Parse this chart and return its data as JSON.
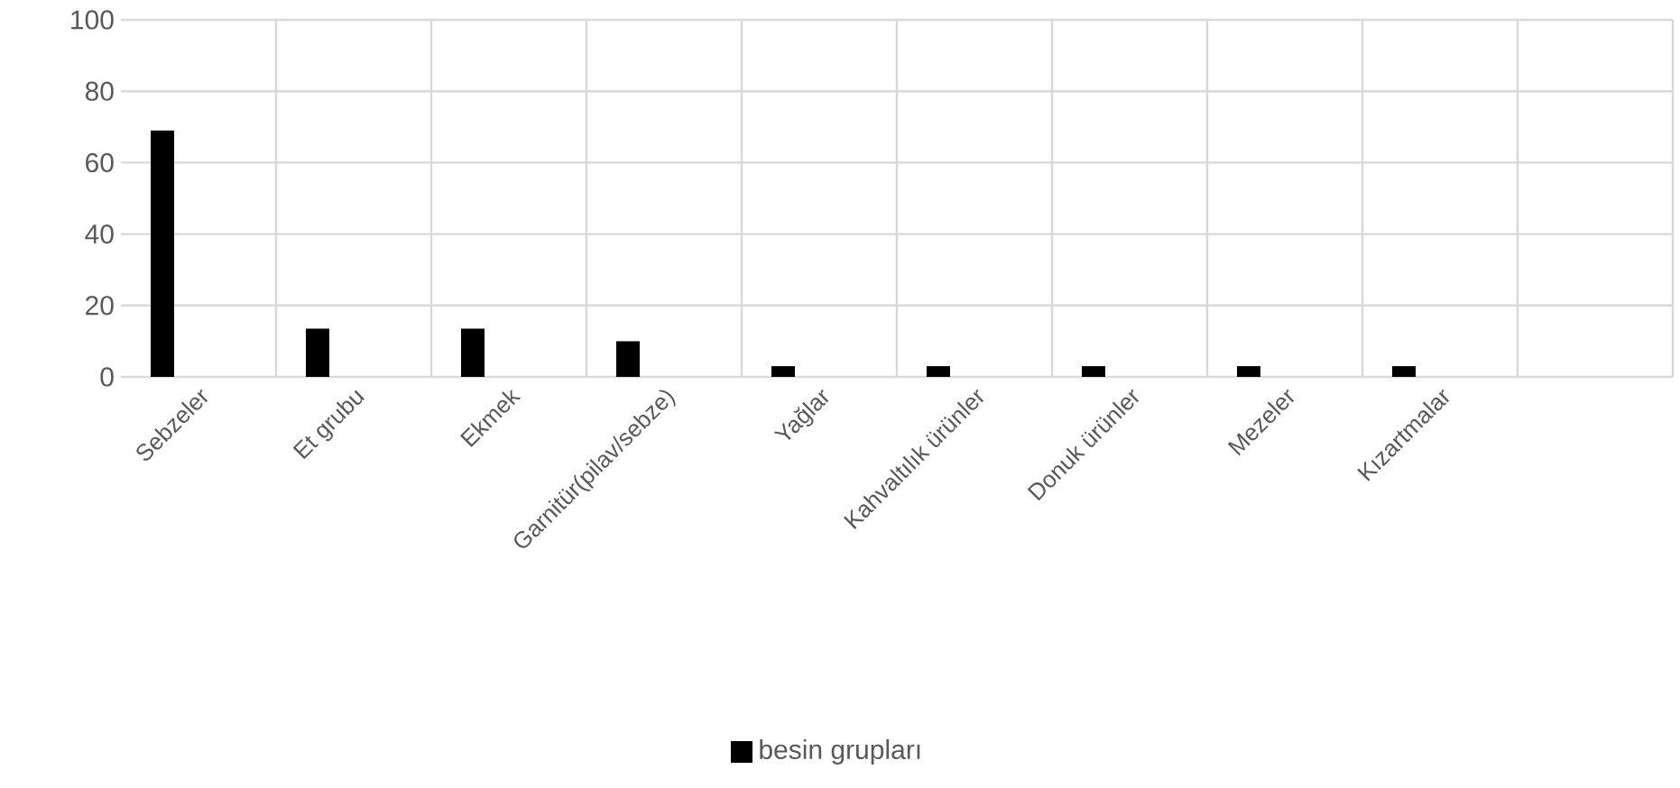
{
  "chart_data": {
    "type": "bar",
    "categories": [
      "Sebzeler",
      "Et grubu",
      "Ekmek",
      "Garnitür(pilav/sebze)",
      "Yağlar",
      "Kahvaltılık ürünler",
      "Donuk ürünler",
      "Mezeler",
      "Kızartmalar",
      null
    ],
    "series": [
      {
        "name": "besin grupları",
        "color": "#000000",
        "values": [
          69,
          13.5,
          13.5,
          10,
          3,
          3,
          3,
          3,
          3,
          null
        ]
      }
    ],
    "ylim": [
      0,
      100
    ],
    "yticks": [
      0,
      20,
      40,
      60,
      80,
      100
    ],
    "grid": true,
    "legend": "bottom"
  }
}
